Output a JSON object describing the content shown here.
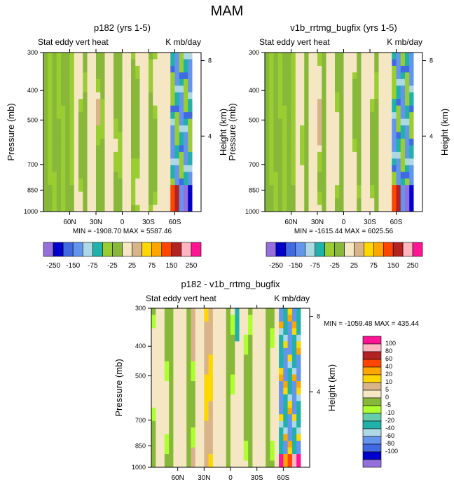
{
  "figure": {
    "title": "MAM"
  },
  "palette": {
    "abs": [
      "#9370DB",
      "#0000CD",
      "#4169E1",
      "#6495ED",
      "#ADD8E6",
      "#20B2AA",
      "#9ACD32",
      "#88B83A",
      "#F5E6C4",
      "#D9B48A",
      "#FFD700",
      "#FFA500",
      "#FF4500",
      "#B22222",
      "#FFB6C1",
      "#FF1493"
    ],
    "diff": [
      "#9370DB",
      "#0000CD",
      "#4169E1",
      "#6495ED",
      "#ADD8E6",
      "#20B2AA",
      "#66CDAA",
      "#ADFF2F",
      "#88B83A",
      "#F5E6C4",
      "#D9B48A",
      "#FFD700",
      "#FFA500",
      "#FF4500",
      "#B22222",
      "#FFB6C1",
      "#FF1493"
    ]
  },
  "chart_data": [
    {
      "type": "heatmap",
      "title": "p182 (yrs 1-5)",
      "variable": "Stat eddy vert heat",
      "units": "K mb/day",
      "ylabel": "Pressure (mb)",
      "y2label": "Height (km)",
      "x_ticks": [
        "60N",
        "30N",
        "0",
        "30S",
        "60S"
      ],
      "y_ticks": [
        "300",
        "400",
        "500",
        "700",
        "850",
        "1000"
      ],
      "y2_ticks": [
        "8",
        "4"
      ],
      "ylim": [
        300,
        1000
      ],
      "xlim": [
        90,
        -90
      ],
      "stats": "MIN = -1908.70   MAX = 5587.46",
      "levels": [
        "-250",
        "-150",
        "-75",
        "-25",
        "25",
        "75",
        "150",
        "250"
      ]
    },
    {
      "type": "heatmap",
      "title": "v1b_rrtmg_bugfix (yrs 1-5)",
      "variable": "Stat eddy vert heat",
      "units": "K mb/day",
      "ylabel": "Pressure (mb)",
      "y2label": "Height (km)",
      "x_ticks": [
        "60N",
        "30N",
        "0",
        "30S",
        "60S"
      ],
      "y_ticks": [
        "300",
        "400",
        "500",
        "700",
        "850",
        "1000"
      ],
      "y2_ticks": [
        "8",
        "4"
      ],
      "ylim": [
        300,
        1000
      ],
      "xlim": [
        90,
        -90
      ],
      "stats": "MIN = -1615.44   MAX = 6025.56",
      "levels": [
        "-250",
        "-150",
        "-75",
        "-25",
        "25",
        "75",
        "150",
        "250"
      ]
    },
    {
      "type": "heatmap",
      "title": "p182 - v1b_rrtmg_bugfix",
      "variable": "Stat eddy vert heat",
      "units": "K mb/day",
      "ylabel": "Pressure (mb)",
      "y2label": "Height (km)",
      "x_ticks": [
        "60N",
        "30N",
        "0",
        "30S",
        "60S"
      ],
      "y_ticks": [
        "300",
        "400",
        "500",
        "700",
        "850",
        "1000"
      ],
      "y2_ticks": [
        "8",
        "4"
      ],
      "ylim": [
        300,
        1000
      ],
      "xlim": [
        90,
        -90
      ],
      "stats": "MIN = -1059.48   MAX = 435.44",
      "levels": [
        "100",
        "80",
        "60",
        "40",
        "20",
        "10",
        "5",
        "0",
        "-5",
        "-10",
        "-20",
        "-40",
        "-60",
        "-80",
        "-100"
      ]
    }
  ]
}
